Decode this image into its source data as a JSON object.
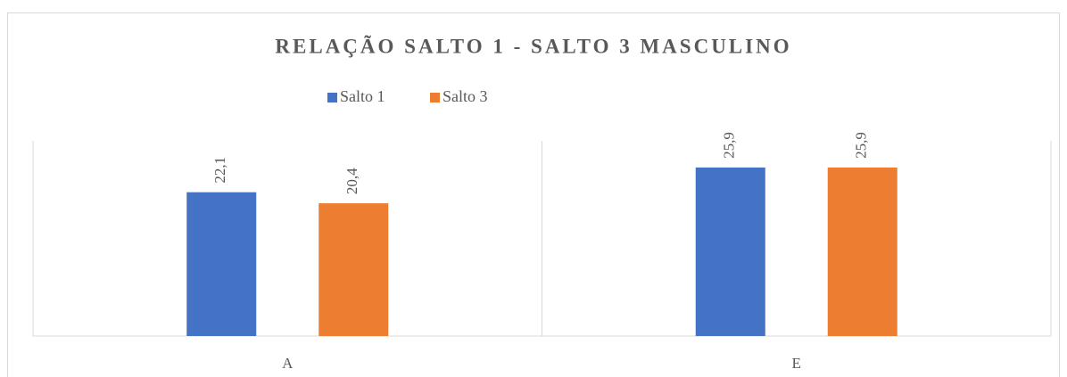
{
  "chart_data": {
    "type": "bar",
    "title": "RELAÇÃO SALTO 1 - SALTO 3 MASCULINO",
    "categories": [
      "A",
      "E"
    ],
    "series": [
      {
        "name": "Salto 1",
        "color": "#4472c4",
        "values": [
          22.1,
          25.9
        ],
        "value_labels": [
          "22,1",
          "25,9"
        ]
      },
      {
        "name": "Salto 3",
        "color": "#ed7d31",
        "values": [
          20.4,
          25.9
        ],
        "value_labels": [
          "20,4",
          "25,9"
        ]
      }
    ],
    "ylim": [
      0,
      30
    ],
    "legend": "top"
  }
}
